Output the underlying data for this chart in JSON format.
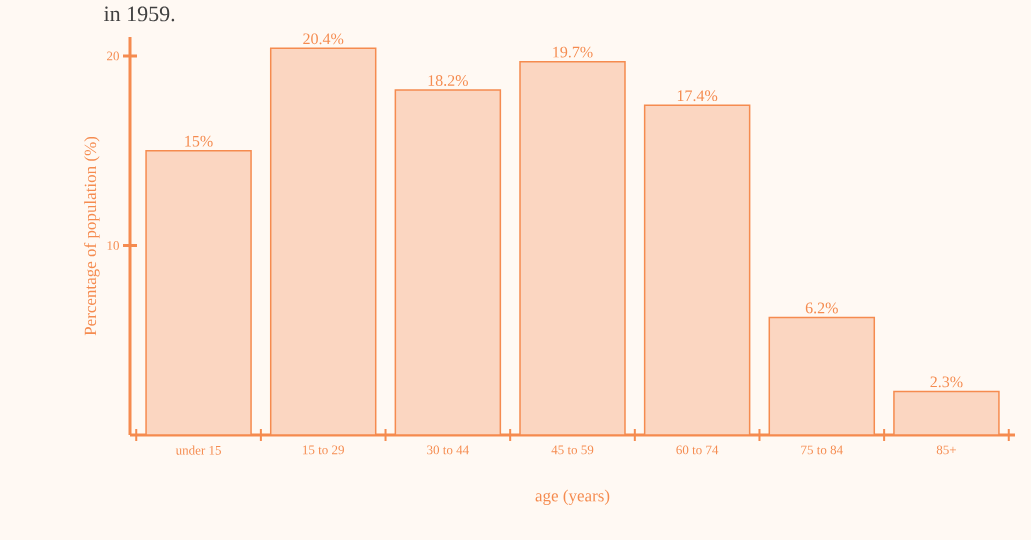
{
  "chart_data": {
    "type": "bar",
    "title": "in 1959.",
    "xlabel": "age (years)",
    "ylabel": "Percentage of population (%)",
    "categories": [
      "under 15",
      "15 to 29",
      "30 to 44",
      "45 to 59",
      "60 to 74",
      "75 to 84",
      "85+"
    ],
    "values": [
      15,
      20.4,
      18.2,
      19.7,
      17.4,
      6.2,
      2.3
    ],
    "value_labels": [
      "15%",
      "20.4%",
      "18.2%",
      "19.7%",
      "17.4%",
      "6.2%",
      "2.3%"
    ],
    "color": "#f58b4f",
    "ylim": [
      0,
      21
    ],
    "yticks": [
      10,
      20
    ],
    "grid": false
  }
}
